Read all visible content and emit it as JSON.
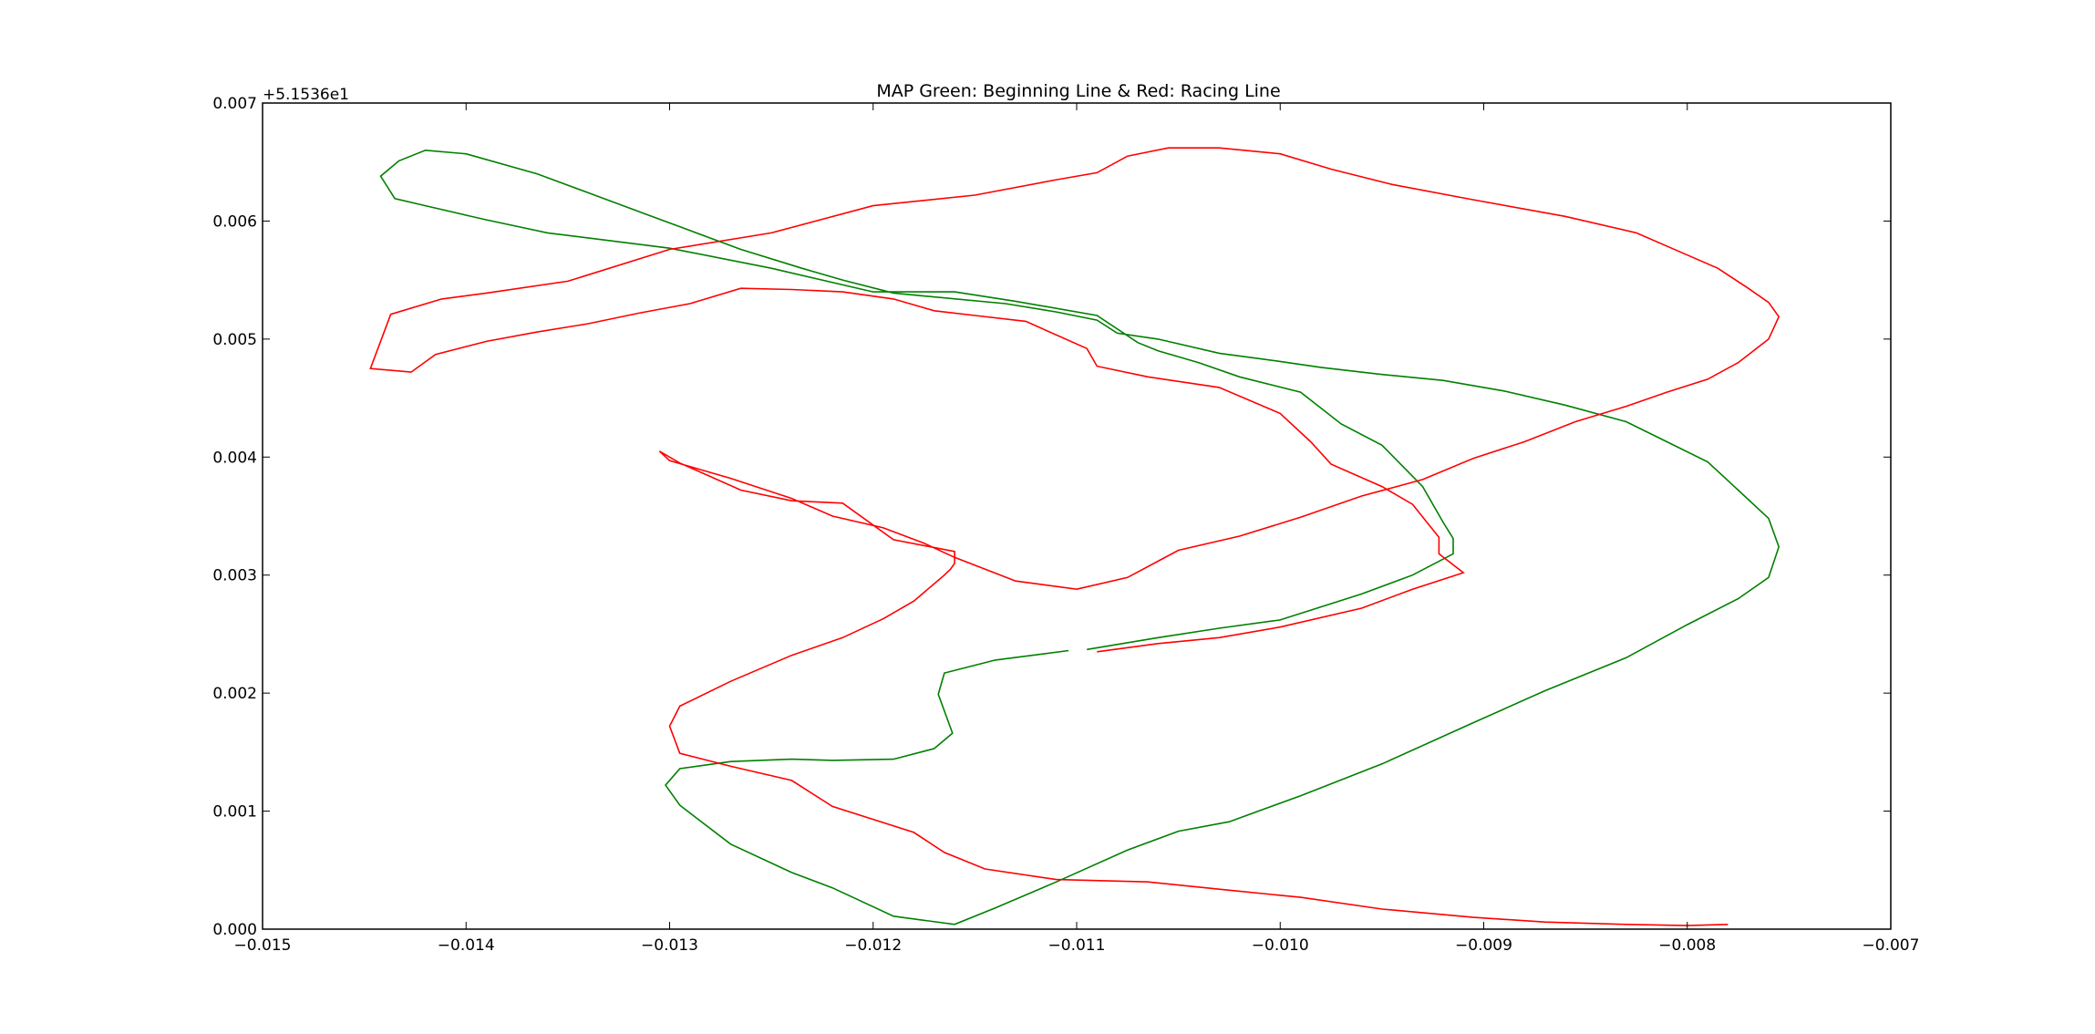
{
  "chart_data": {
    "type": "line",
    "title": "MAP Green: Beginning Line & Red: Racing Line",
    "xlabel": "",
    "ylabel": "",
    "xlim": [
      -0.015,
      -0.007
    ],
    "ylim": [
      0.0,
      0.007
    ],
    "y_offset_label": "+5.1536e1",
    "grid": false,
    "xticks": [
      "−0.015",
      "−0.014",
      "−0.013",
      "−0.012",
      "−0.011",
      "−0.010",
      "−0.009",
      "−0.008",
      "−0.007"
    ],
    "xtick_values": [
      -0.015,
      -0.014,
      -0.013,
      -0.012,
      -0.011,
      -0.01,
      -0.009,
      -0.008,
      -0.007
    ],
    "yticks": [
      "0.000",
      "0.001",
      "0.002",
      "0.003",
      "0.004",
      "0.005",
      "0.006",
      "0.007"
    ],
    "ytick_values": [
      0.0,
      0.001,
      0.002,
      0.003,
      0.004,
      0.005,
      0.006,
      0.007
    ],
    "series": [
      {
        "color": "#008000",
        "x": [
          -0.01104,
          -0.0114,
          -0.01165,
          -0.01168,
          -0.01161,
          -0.0117,
          -0.0119,
          -0.0122,
          -0.0124,
          -0.0127,
          -0.01295,
          -0.01302,
          -0.01295,
          -0.0127,
          -0.0124,
          -0.0122,
          -0.0119,
          -0.0116,
          -0.0114,
          -0.0111,
          -0.01075,
          -0.0105,
          -0.01025,
          -0.0099,
          -0.0095,
          -0.00905,
          -0.0087,
          -0.0083,
          -0.008,
          -0.00775,
          -0.0076,
          -0.00755,
          -0.0076,
          -0.00775,
          -0.0079,
          -0.0081,
          -0.0083,
          -0.0086,
          -0.0089,
          -0.0092,
          -0.0095,
          -0.0098,
          -0.01,
          -0.0103,
          -0.0106,
          -0.0108,
          -0.0109,
          -0.0111,
          -0.01135,
          -0.0119,
          -0.01215,
          -0.01235,
          -0.01265,
          -0.0129,
          -0.01315,
          -0.0134,
          -0.01365,
          -0.014,
          -0.0142,
          -0.01433,
          -0.01442,
          -0.01435,
          -0.0142,
          -0.014,
          -0.0139,
          -0.0136,
          -0.013,
          -0.0125,
          -0.012,
          -0.0116,
          -0.0113,
          -0.0109,
          -0.0107,
          -0.0106,
          -0.0104,
          -0.0102,
          -0.0099,
          -0.0097,
          -0.0095,
          -0.0093,
          -0.0092,
          -0.00915,
          -0.00915,
          -0.00935,
          -0.0096,
          -0.01,
          -0.0103,
          -0.0106,
          -0.01095
        ],
        "y": [
          0.00236,
          0.00228,
          0.00217,
          0.00199,
          0.00166,
          0.00153,
          0.00144,
          0.00143,
          0.00144,
          0.00142,
          0.00136,
          0.00122,
          0.00105,
          0.00072,
          0.00048,
          0.00035,
          0.00011,
          4e-05,
          0.00018,
          0.0004,
          0.00067,
          0.00083,
          0.00091,
          0.00113,
          0.0014,
          0.00175,
          0.00202,
          0.0023,
          0.00258,
          0.0028,
          0.00298,
          0.00324,
          0.00348,
          0.00372,
          0.00396,
          0.00413,
          0.0043,
          0.00444,
          0.00456,
          0.00465,
          0.0047,
          0.00476,
          0.00481,
          0.00488,
          0.005,
          0.00505,
          0.00516,
          0.00523,
          0.0053,
          0.00539,
          0.0055,
          0.0056,
          0.00576,
          0.00592,
          0.00608,
          0.00624,
          0.0064,
          0.00657,
          0.0066,
          0.00651,
          0.00638,
          0.00619,
          0.00613,
          0.00605,
          0.00601,
          0.0059,
          0.00577,
          0.0056,
          0.0054,
          0.0054,
          0.00532,
          0.0052,
          0.00497,
          0.0049,
          0.0048,
          0.00468,
          0.00455,
          0.00428,
          0.0041,
          0.00375,
          0.00345,
          0.00331,
          0.00318,
          0.003,
          0.00284,
          0.00262,
          0.00255,
          0.00247,
          0.00237
        ]
      },
      {
        "color": "#ff0000",
        "x": [
          -0.0109,
          -0.0106,
          -0.0103,
          -0.01,
          -0.0096,
          -0.00935,
          -0.0091,
          -0.00922,
          -0.00922,
          -0.00935,
          -0.0095,
          -0.00975,
          -0.00985,
          -0.01,
          -0.0103,
          -0.01065,
          -0.0109,
          -0.01095,
          -0.01125,
          -0.0115,
          -0.0117,
          -0.0119,
          -0.01215,
          -0.0124,
          -0.01265,
          -0.0129,
          -0.01315,
          -0.0134,
          -0.01365,
          -0.0139,
          -0.01415,
          -0.01427,
          -0.01447,
          -0.01437,
          -0.01412,
          -0.0139,
          -0.0135,
          -0.013,
          -0.0125,
          -0.012,
          -0.0115,
          -0.0111,
          -0.0109,
          -0.01075,
          -0.01055,
          -0.0103,
          -0.01,
          -0.00975,
          -0.00945,
          -0.00905,
          -0.0086,
          -0.00825,
          -0.00805,
          -0.00785,
          -0.0077,
          -0.0076,
          -0.00755,
          -0.0076,
          -0.00775,
          -0.0079,
          -0.0081,
          -0.0083,
          -0.00855,
          -0.0088,
          -0.00905,
          -0.0093,
          -0.0096,
          -0.0099,
          -0.0102,
          -0.0105,
          -0.01075,
          -0.011,
          -0.0113,
          -0.0116,
          -0.01175,
          -0.01195,
          -0.0122,
          -0.0124,
          -0.0127,
          -0.013,
          -0.01305,
          -0.01295,
          -0.01265,
          -0.0124,
          -0.01215,
          -0.0119,
          -0.0116,
          -0.0116,
          -0.01162,
          -0.01165,
          -0.0118,
          -0.01195,
          -0.01215,
          -0.0124,
          -0.0127,
          -0.01295,
          -0.013,
          -0.01295,
          -0.0127,
          -0.0124,
          -0.0122,
          -0.0118,
          -0.01165,
          -0.01145,
          -0.0111,
          -0.01065,
          -0.01025,
          -0.0099,
          -0.0095,
          -0.00905,
          -0.0087,
          -0.0083,
          -0.008,
          -0.0078
        ],
        "y": [
          0.00235,
          0.00242,
          0.00247,
          0.00256,
          0.00272,
          0.00288,
          0.00302,
          0.00318,
          0.00332,
          0.0036,
          0.00375,
          0.00394,
          0.00413,
          0.00437,
          0.00459,
          0.00468,
          0.00477,
          0.00492,
          0.00515,
          0.0052,
          0.00524,
          0.00534,
          0.0054,
          0.00542,
          0.00543,
          0.0053,
          0.00522,
          0.00513,
          0.00506,
          0.00498,
          0.00487,
          0.00472,
          0.00475,
          0.00521,
          0.00534,
          0.00539,
          0.00549,
          0.00576,
          0.0059,
          0.00613,
          0.00622,
          0.00635,
          0.00641,
          0.00655,
          0.00662,
          0.00662,
          0.00657,
          0.00644,
          0.00631,
          0.00618,
          0.00604,
          0.0059,
          0.00575,
          0.0056,
          0.00543,
          0.00531,
          0.00519,
          0.005,
          0.0048,
          0.00466,
          0.00455,
          0.00443,
          0.0043,
          0.00413,
          0.00399,
          0.00381,
          0.00367,
          0.00349,
          0.00333,
          0.00321,
          0.00298,
          0.00288,
          0.00295,
          0.00315,
          0.00327,
          0.0034,
          0.0035,
          0.00365,
          0.00382,
          0.00397,
          0.00405,
          0.00395,
          0.00372,
          0.00363,
          0.00361,
          0.0033,
          0.0032,
          0.0031,
          0.00305,
          0.003,
          0.00278,
          0.00263,
          0.00247,
          0.00232,
          0.0021,
          0.00189,
          0.00172,
          0.00149,
          0.00138,
          0.00126,
          0.00104,
          0.00082,
          0.00065,
          0.00051,
          0.00042,
          0.0004,
          0.00033,
          0.00027,
          0.00017,
          0.0001,
          6e-05,
          4e-05,
          3e-05,
          4e-05
        ]
      }
    ]
  }
}
